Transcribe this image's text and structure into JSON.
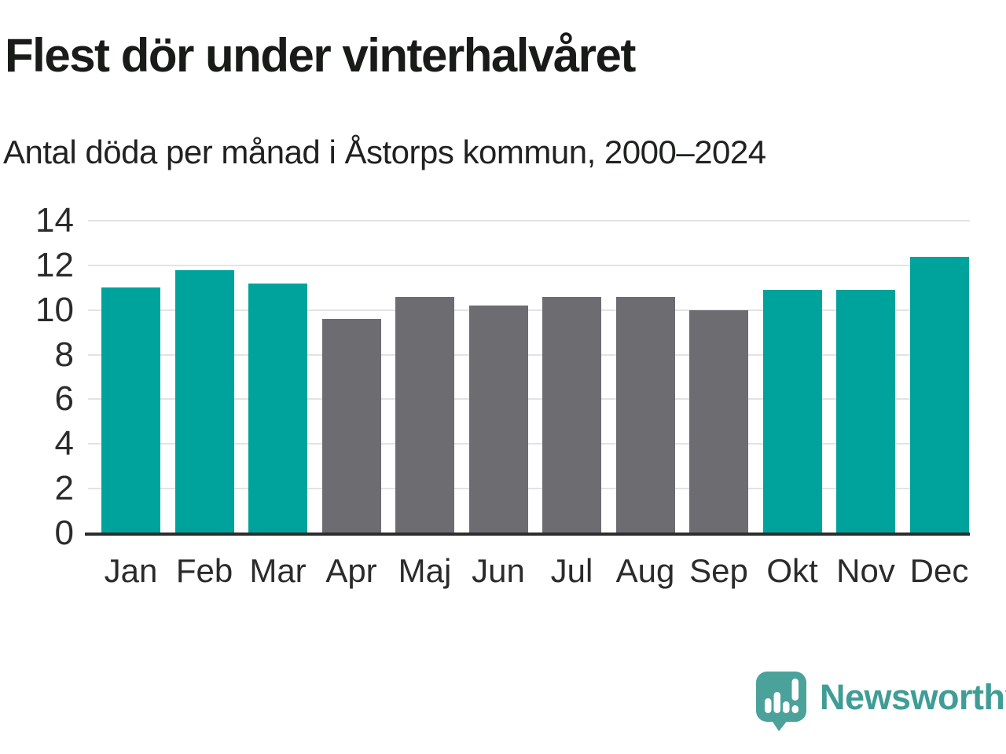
{
  "header": {
    "title": "Flest dör under vinterhalvåret",
    "subtitle": "Antal döda per månad i Åstorps kommun, 2000–2024"
  },
  "chart_data": {
    "type": "bar",
    "title": "Flest dör under vinterhalvåret",
    "subtitle": "Antal döda per månad i Åstorps kommun, 2000–2024",
    "categories": [
      "Jan",
      "Feb",
      "Mar",
      "Apr",
      "Maj",
      "Jun",
      "Jul",
      "Aug",
      "Sep",
      "Okt",
      "Nov",
      "Dec"
    ],
    "values": [
      11.0,
      11.8,
      11.2,
      9.6,
      10.6,
      10.2,
      10.6,
      10.6,
      10.0,
      10.9,
      10.9,
      12.4
    ],
    "bar_colors": [
      "#00a39b",
      "#00a39b",
      "#00a39b",
      "#6c6c71",
      "#6c6c71",
      "#6c6c71",
      "#6c6c71",
      "#6c6c71",
      "#6c6c71",
      "#00a39b",
      "#00a39b",
      "#00a39b"
    ],
    "highlight_color": "#00a39b",
    "muted_color": "#6c6c71",
    "xlabel": "",
    "ylabel": "",
    "ylim": [
      0,
      14
    ],
    "yticks": [
      0,
      2,
      4,
      6,
      8,
      10,
      12,
      14
    ],
    "grid": true,
    "gridline_color": "#e3e3e3",
    "axis_line_color": "#2d2d2d",
    "legend": "none"
  },
  "footer": {
    "brand": "Newsworthy",
    "brand_color": "#3f9d96",
    "logo_icon": "bar-chart-speech-bubble-icon"
  }
}
